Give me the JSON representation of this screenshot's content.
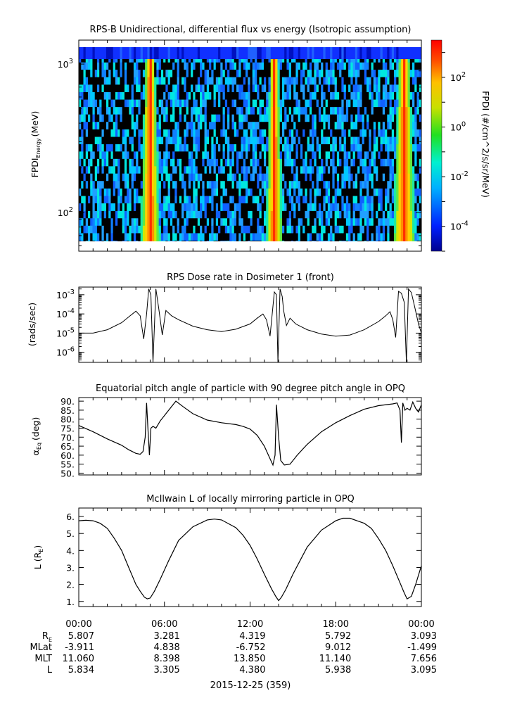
{
  "chart_data": [
    {
      "type": "heatmap",
      "title": "RPS-B  Unidirectional, differential flux vs energy (Isotropic assumption)",
      "ylabel_main": "FPDI",
      "ylabel_sub": "Energy",
      "ylabel_unit": "(MeV)",
      "yscale": "log",
      "ylim": [
        55,
        1450
      ],
      "yticks": [
        {
          "value": 100,
          "base": "10",
          "exp": "2"
        },
        {
          "value": 1000,
          "base": "10",
          "exp": "3"
        }
      ],
      "energy_bins": [
        58,
        65,
        73,
        82,
        92,
        103,
        116,
        130,
        146,
        164,
        184,
        206,
        231,
        259,
        290,
        325,
        365,
        410,
        460,
        516,
        579,
        650,
        730,
        820,
        920,
        1030,
        1160
      ],
      "time_range_hours": [
        0,
        24
      ],
      "flux_bands_hours": [
        {
          "start": 4.3,
          "end": 5.7
        },
        {
          "start": 13.1,
          "end": 14.3
        },
        {
          "start": 22.0,
          "end": 23.6
        }
      ],
      "colorbar": {
        "label": "FPDI (#/cm^2/s/sr/MeV)",
        "scale": "log",
        "range": [
          -5,
          3.5
        ],
        "ticks": [
          {
            "base": "10",
            "exp": "2",
            "value": 2
          },
          {
            "base": "10",
            "exp": "0",
            "value": 0
          },
          {
            "base": "10",
            "exp": "-2",
            "value": -2
          },
          {
            "base": "10",
            "exp": "-4",
            "value": -4
          }
        ]
      }
    },
    {
      "type": "line",
      "title": "RPS  Dose rate in Dosimeter 1 (front)",
      "ylabel": "(rads/sec)",
      "yscale": "log",
      "ylim": [
        3e-07,
        0.0025
      ],
      "yticks": [
        {
          "base": "10",
          "exp": "-3",
          "value": 0.001
        },
        {
          "base": "10",
          "exp": "-4",
          "value": 0.0001
        },
        {
          "base": "10",
          "exp": "-5",
          "value": 1e-05
        },
        {
          "base": "10",
          "exp": "-6",
          "value": 1e-06
        }
      ],
      "x": [
        0,
        1,
        2,
        3,
        3.5,
        4,
        4.3,
        4.55,
        4.75,
        4.9,
        5.05,
        5.2,
        5.4,
        5.6,
        5.85,
        6.1,
        6.5,
        7,
        8,
        9,
        10,
        11,
        12,
        12.5,
        12.9,
        13.15,
        13.4,
        13.7,
        13.85,
        13.95,
        14.1,
        14.25,
        14.35,
        14.55,
        14.8,
        15.2,
        16,
        17,
        18,
        19,
        20,
        21,
        21.5,
        21.8,
        22.0,
        22.2,
        22.4,
        22.6,
        22.8,
        22.95,
        23.1,
        23.3,
        23.55,
        23.8,
        24
      ],
      "y": [
        1e-05,
        1e-05,
        1.5e-05,
        3.5e-05,
        7e-05,
        0.00014,
        8e-05,
        5e-06,
        0.0001,
        0.002,
        0.001,
        3e-07,
        0.002,
        0.0002,
        8e-06,
        0.00015,
        8e-05,
        5e-05,
        2.3e-05,
        1.5e-05,
        1.2e-05,
        1.6e-05,
        3e-05,
        6e-05,
        0.0001,
        5e-05,
        7e-06,
        0.0014,
        0.001,
        3e-07,
        0.002,
        0.0008,
        0.00015,
        2.5e-05,
        6e-05,
        3e-05,
        1.5e-05,
        9e-06,
        7e-06,
        8e-06,
        1.5e-05,
        4e-05,
        8e-05,
        0.00013,
        5e-05,
        6e-06,
        0.0015,
        0.0012,
        0.0004,
        3e-07,
        0.002,
        0.0013,
        0.0002,
        3e-05,
        1e-05
      ]
    },
    {
      "type": "line",
      "title": "Equatorial pitch angle of particle with 90 degree pitch angle in OPQ",
      "ylabel_main": "α",
      "ylabel_sub": "Eq",
      "ylabel_unit": "(deg)",
      "ylim": [
        49,
        92
      ],
      "yticks": [
        50,
        55,
        60,
        65,
        70,
        75,
        80,
        85,
        90
      ],
      "x": [
        0,
        1,
        2,
        3,
        3.5,
        4,
        4.3,
        4.5,
        4.65,
        4.75,
        4.85,
        4.95,
        5.05,
        5.2,
        5.4,
        5.7,
        6.2,
        6.8,
        7.3,
        8,
        9,
        10,
        11,
        11.5,
        12,
        12.5,
        13,
        13.4,
        13.6,
        13.75,
        13.85,
        14.0,
        14.15,
        14.4,
        14.8,
        15.3,
        16,
        17,
        18,
        19,
        20,
        21,
        22,
        22.3,
        22.5,
        22.6,
        22.7,
        22.85,
        23.0,
        23.2,
        23.4,
        23.6,
        23.8,
        24
      ],
      "y": [
        76.5,
        73,
        69,
        65.5,
        63,
        61,
        60.5,
        62,
        70,
        89,
        74,
        60,
        75,
        76,
        75,
        79,
        84,
        90,
        87,
        83,
        79.5,
        78,
        77,
        76,
        74.5,
        71,
        65,
        58,
        54.5,
        60,
        88,
        70,
        57,
        54.5,
        55,
        60,
        66,
        73,
        78,
        82,
        85.5,
        87.5,
        88.5,
        89,
        85,
        67,
        89,
        85,
        86,
        85,
        89.5,
        86,
        84,
        88
      ]
    },
    {
      "type": "line",
      "title": "McIlwain L of locally mirroring particle in OPQ",
      "ylabel_main": "L (R",
      "ylabel_sub": "E",
      "ylabel_unit": ")",
      "ylim": [
        0.7,
        6.5
      ],
      "yticks": [
        1,
        2,
        3,
        4,
        5,
        6
      ],
      "x": [
        0,
        0.5,
        1,
        1.5,
        2,
        2.5,
        3,
        3.5,
        4,
        4.3,
        4.6,
        4.8,
        5.0,
        5.3,
        5.7,
        6.3,
        7,
        8,
        9,
        9.5,
        10,
        11,
        11.5,
        12,
        12.5,
        13,
        13.5,
        13.8,
        14.0,
        14.2,
        14.5,
        15,
        15.5,
        16,
        17,
        18,
        18.5,
        19,
        20,
        20.5,
        21,
        21.5,
        22,
        22.5,
        22.8,
        23.0,
        23.3,
        23.6,
        24
      ],
      "y": [
        5.75,
        5.78,
        5.75,
        5.6,
        5.3,
        4.7,
        4.0,
        3.0,
        2.0,
        1.6,
        1.25,
        1.15,
        1.2,
        1.6,
        2.3,
        3.4,
        4.6,
        5.4,
        5.8,
        5.85,
        5.8,
        5.35,
        4.9,
        4.3,
        3.5,
        2.6,
        1.75,
        1.3,
        1.05,
        1.25,
        1.7,
        2.6,
        3.4,
        4.2,
        5.2,
        5.75,
        5.9,
        5.9,
        5.6,
        5.3,
        4.7,
        4.0,
        3.1,
        2.1,
        1.5,
        1.15,
        1.3,
        2.0,
        3.1
      ]
    }
  ],
  "x_axis": {
    "tick_labels": [
      "00:00",
      "06:00",
      "12:00",
      "18:00",
      "00:00"
    ],
    "date_label": "2015-12-25 (359)"
  },
  "ephemeris": [
    {
      "label": "R",
      "label_sub": "E",
      "values": [
        "5.807",
        "3.281",
        "4.319",
        "5.792",
        "3.093"
      ]
    },
    {
      "label": "MLat",
      "label_sub": "",
      "values": [
        "-3.911",
        "4.838",
        "-6.752",
        "9.012",
        "-1.499"
      ]
    },
    {
      "label": "MLT",
      "label_sub": "",
      "values": [
        "11.060",
        "8.398",
        "13.850",
        "11.140",
        "7.656"
      ]
    },
    {
      "label": "L",
      "label_sub": "",
      "values": [
        "5.834",
        "3.305",
        "4.380",
        "5.938",
        "3.095"
      ]
    }
  ],
  "colors": {
    "line": "#000000",
    "background": "#ffffff",
    "fill": "#000000"
  }
}
